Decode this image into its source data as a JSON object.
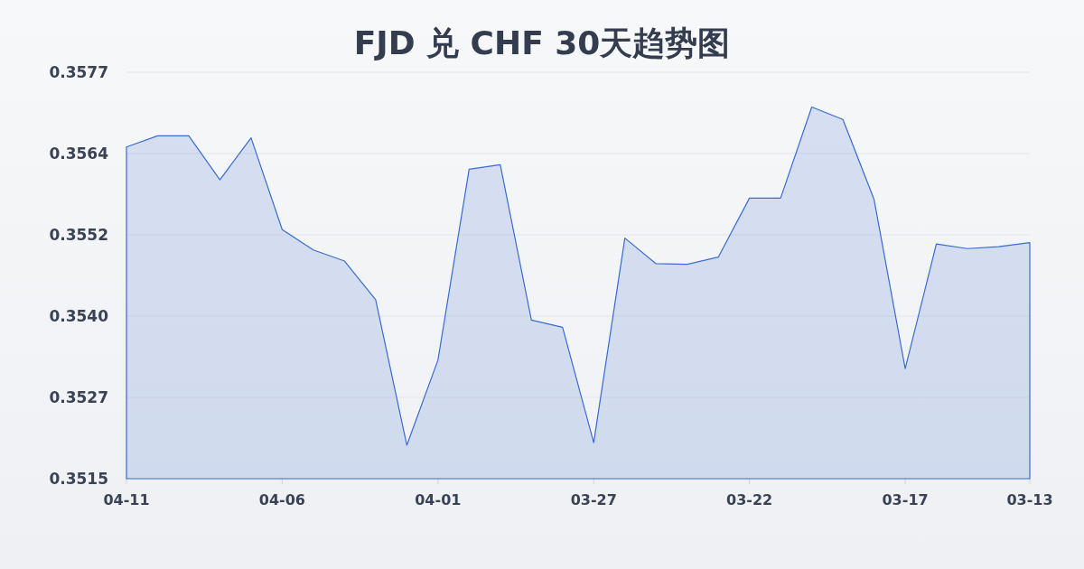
{
  "chart_data": {
    "type": "area",
    "title": "FJD 兑 CHF 30天趋势图",
    "categories": [
      "04-11",
      null,
      null,
      null,
      null,
      "04-06",
      null,
      null,
      null,
      null,
      "04-01",
      null,
      null,
      null,
      null,
      "03-27",
      null,
      null,
      null,
      null,
      "03-22",
      null,
      null,
      null,
      null,
      "03-17",
      null,
      null,
      null,
      "03-13"
    ],
    "series": [
      {
        "color": "#3a6bd0",
        "values": [
          0.35654,
          0.35671,
          0.35671,
          0.35604,
          0.35668,
          0.35528,
          0.35497,
          0.3548,
          0.35421,
          0.35199,
          0.35329,
          0.3562,
          0.35627,
          0.3539,
          0.35379,
          0.35203,
          0.35515,
          0.35476,
          0.35475,
          0.35486,
          0.35576,
          0.35576,
          0.35715,
          0.35696,
          0.35574,
          0.35316,
          0.35506,
          0.35499,
          0.35502,
          0.35508
        ]
      }
    ],
    "ylim": [
      0.35148,
      0.35768
    ],
    "yticks": [
      {
        "value": 0.35148,
        "label": "0.3515"
      },
      {
        "value": 0.35272,
        "label": "0.3527"
      },
      {
        "value": 0.35396,
        "label": "0.3540"
      },
      {
        "value": 0.3552,
        "label": "0.3552"
      },
      {
        "value": 0.35644,
        "label": "0.3564"
      },
      {
        "value": 0.35768,
        "label": "0.3577"
      }
    ],
    "grid": "y"
  }
}
